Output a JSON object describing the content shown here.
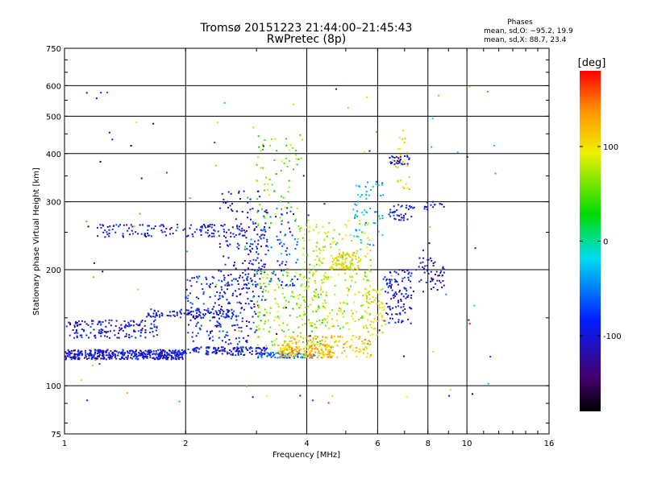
{
  "header": {
    "title_line1": "Tromsø 20151223 21:44:00–21:45:43",
    "title_line2": "RwPretec (8p)"
  },
  "stats": {
    "heading": "Phases",
    "line_o": "mean, sd,O: −95.2, 19.9",
    "line_x": "mean, sd,X:  88.7, 23.4"
  },
  "colorbar": {
    "unit_label": "[deg]",
    "range": [
      -180,
      180
    ],
    "ticks": [
      "100",
      "0",
      "-100"
    ],
    "tick_values": [
      100,
      0,
      -100
    ]
  },
  "chart_data": {
    "type": "scatter",
    "xlabel": "Frequency [MHz]",
    "ylabel": "Stationary phase Virtual Height [km]",
    "xscale": "log",
    "yscale": "log",
    "xlim": [
      1,
      16
    ],
    "ylim": [
      75,
      750
    ],
    "grid": true,
    "color_by": "phase (deg)",
    "xtick_values": [
      1,
      2,
      4,
      6,
      8,
      10,
      16
    ],
    "xtick_labels": [
      "1",
      "2",
      "4",
      "6",
      "8",
      "10",
      "16"
    ],
    "ytick_values": [
      75,
      100,
      200,
      300,
      400,
      500,
      600,
      750
    ],
    "ytick_labels": [
      "75",
      "100",
      "200",
      "300",
      "400",
      "500",
      "600",
      "750"
    ],
    "clusters": [
      {
        "x": [
          1.0,
          2.0
        ],
        "y": [
          117,
          124
        ],
        "phase": -100,
        "count": 420
      },
      {
        "x": [
          1.0,
          1.7
        ],
        "y": [
          133,
          148
        ],
        "phase": -100,
        "count": 150
      },
      {
        "x": [
          1.6,
          2.7
        ],
        "y": [
          150,
          158
        ],
        "phase": -100,
        "count": 110
      },
      {
        "x": [
          1.2,
          2.8
        ],
        "y": [
          243,
          262
        ],
        "phase": -100,
        "count": 130
      },
      {
        "x": [
          2.0,
          3.2
        ],
        "y": [
          120,
          126
        ],
        "phase": -100,
        "count": 130
      },
      {
        "x": [
          2.0,
          3.0
        ],
        "y": [
          128,
          195
        ],
        "phase": -90,
        "count": 180
      },
      {
        "x": [
          2.4,
          3.2
        ],
        "y": [
          160,
          320
        ],
        "phase": -110,
        "count": 150
      },
      {
        "x": [
          2.8,
          3.8
        ],
        "y": [
          180,
          290
        ],
        "phase": -80,
        "count": 120
      },
      {
        "x": [
          3.0,
          3.9
        ],
        "y": [
          260,
          450
        ],
        "phase": 60,
        "count": 70
      },
      {
        "x": [
          3.0,
          4.2
        ],
        "y": [
          118,
          122
        ],
        "phase": -60,
        "count": 90
      },
      {
        "x": [
          3.0,
          4.5
        ],
        "y": [
          125,
          200
        ],
        "phase": 60,
        "count": 160
      },
      {
        "x": [
          3.4,
          4.6
        ],
        "y": [
          118,
          128
        ],
        "phase": 120,
        "count": 120
      },
      {
        "x": [
          3.5,
          5.8
        ],
        "y": [
          118,
          135
        ],
        "phase": 110,
        "count": 170
      },
      {
        "x": [
          3.8,
          5.8
        ],
        "y": [
          140,
          270
        ],
        "phase": 80,
        "count": 250
      },
      {
        "x": [
          4.6,
          5.4
        ],
        "y": [
          200,
          222
        ],
        "phase": 100,
        "count": 90
      },
      {
        "x": [
          5.2,
          6.2
        ],
        "y": [
          230,
          340
        ],
        "phase": -20,
        "count": 60
      },
      {
        "x": [
          5.6,
          6.3
        ],
        "y": [
          135,
          180
        ],
        "phase": 90,
        "count": 60
      },
      {
        "x": [
          6.2,
          7.3
        ],
        "y": [
          145,
          200
        ],
        "phase": -100,
        "count": 110
      },
      {
        "x": [
          6.4,
          7.4
        ],
        "y": [
          268,
          295
        ],
        "phase": -100,
        "count": 40
      },
      {
        "x": [
          6.4,
          7.2
        ],
        "y": [
          375,
          395
        ],
        "phase": -110,
        "count": 30
      },
      {
        "x": [
          6.5,
          7.2
        ],
        "y": [
          320,
          470
        ],
        "phase": 100,
        "count": 25
      },
      {
        "x": [
          7.6,
          8.8
        ],
        "y": [
          175,
          215
        ],
        "phase": -110,
        "count": 50
      },
      {
        "x": [
          7.8,
          8.8
        ],
        "y": [
          285,
          300
        ],
        "phase": -100,
        "count": 15
      },
      {
        "x": [
          1.1,
          12.0
        ],
        "y": [
          90,
          600
        ],
        "phase": 0,
        "count": 120
      }
    ]
  }
}
